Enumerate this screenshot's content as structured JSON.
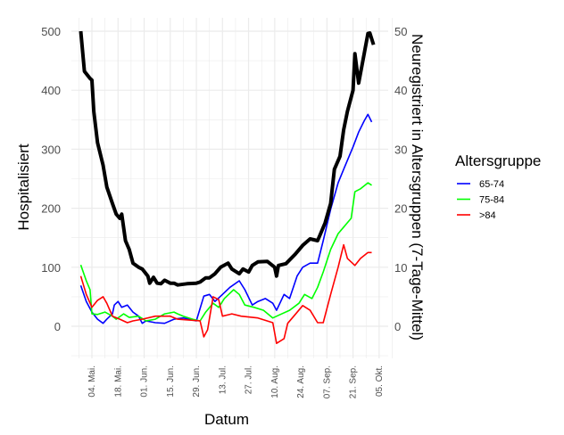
{
  "chart_data": {
    "type": "line",
    "x_unit": "days since 04. Mai",
    "xlabel": "Datum",
    "ylabel_left": "Hospitalisiert",
    "ylabel_right": "Neuregistriert in Altersgruppen (7-Tage-Mittel)",
    "ylim_left": [
      -50,
      525
    ],
    "ylim_right": [
      -5,
      52.5
    ],
    "left_ticks": [
      0,
      100,
      200,
      300,
      400,
      500
    ],
    "right_ticks": [
      0,
      10,
      20,
      30,
      40,
      50
    ],
    "left_tick_labels": [
      "0",
      "100",
      "200",
      "300",
      "400",
      "500"
    ],
    "right_tick_labels": [
      "0",
      "10",
      "20",
      "30",
      "40",
      "50"
    ],
    "x_ticks": [
      0,
      14,
      28,
      42,
      56,
      70,
      84,
      98,
      112,
      126,
      140,
      154
    ],
    "x_tick_labels": [
      "04. Mai.",
      "18. Mai.",
      "01. Jun.",
      "15. Jun.",
      "29. Jun.",
      "13. Jul.",
      "27. Jul.",
      "10. Aug.",
      "24. Aug.",
      "07. Sep.",
      "21. Sep.",
      "05. Okt."
    ],
    "grid": true,
    "legend": {
      "title": "Altersgruppe",
      "placement": "right"
    },
    "series": [
      {
        "name": "Hospitalisiert",
        "axis": "left",
        "color": "#000000",
        "in_legend": false,
        "x": [
          -6,
          -4,
          -1,
          0,
          1,
          3,
          6,
          8,
          11,
          13,
          15,
          16,
          18,
          20,
          22,
          25,
          27,
          30,
          31,
          33,
          35,
          37,
          39,
          42,
          44,
          46,
          51,
          56,
          58,
          61,
          63,
          66,
          69,
          73,
          75,
          79,
          81,
          84,
          86,
          89,
          94,
          98,
          99,
          100,
          104,
          109,
          113,
          117,
          121,
          123,
          125,
          128,
          130,
          133,
          135,
          137,
          140,
          141,
          143,
          146,
          148,
          149,
          151
        ],
        "values": [
          500,
          432,
          420,
          417,
          364,
          311,
          273,
          236,
          208,
          190,
          183,
          190,
          145,
          130,
          107,
          100,
          97,
          85,
          73,
          83,
          73,
          72,
          78,
          73,
          73,
          70,
          72,
          73,
          75,
          82,
          82,
          89,
          100,
          107,
          97,
          89,
          97,
          92,
          103,
          109,
          110,
          100,
          85,
          103,
          106,
          122,
          137,
          148,
          145,
          160,
          175,
          208,
          266,
          288,
          333,
          364,
          400,
          462,
          412,
          462,
          496,
          497,
          477
        ]
      },
      {
        "name": "65-74",
        "axis": "right",
        "color": "#0000ff",
        "in_legend": true,
        "x": [
          -6,
          -3,
          0,
          3,
          6,
          8,
          11,
          12,
          14,
          16,
          19,
          22,
          25,
          27,
          29,
          34,
          39,
          44,
          49,
          56,
          60,
          63,
          66,
          70,
          74,
          79,
          82,
          86,
          89,
          93,
          97,
          99,
          103,
          106,
          110,
          113,
          117,
          121,
          124,
          128,
          132,
          135,
          140,
          143,
          146,
          148,
          150
        ],
        "values": [
          6.9,
          4.2,
          2.4,
          1.2,
          0.5,
          1.2,
          2.1,
          3.6,
          4.2,
          3.2,
          3.6,
          2.4,
          1.7,
          0.5,
          0.9,
          0.6,
          0.5,
          1.2,
          1.4,
          0.9,
          5.1,
          5.4,
          4.2,
          5.4,
          6.6,
          7.7,
          6.2,
          3.6,
          4.2,
          4.7,
          3.9,
          2.7,
          5.4,
          4.7,
          8.5,
          10,
          10.7,
          10.7,
          14.5,
          19.8,
          24.3,
          26.6,
          30.4,
          32.9,
          34.8,
          35.9,
          34.6
        ]
      },
      {
        "name": "75-84",
        "axis": "right",
        "color": "#00ff00",
        "in_legend": true,
        "x": [
          -6,
          -3,
          -1,
          0,
          3,
          7,
          11,
          13,
          17,
          20,
          25,
          29,
          34,
          39,
          44,
          46,
          49,
          54,
          58,
          61,
          65,
          68,
          71,
          76,
          79,
          82,
          87,
          92,
          97,
          101,
          106,
          111,
          114,
          118,
          121,
          124,
          128,
          132,
          135,
          139,
          141,
          144,
          148,
          150
        ],
        "values": [
          10.4,
          7.7,
          6.2,
          2.1,
          2,
          2.4,
          1.7,
          1.2,
          2.1,
          1.5,
          1.7,
          0.9,
          1.2,
          2.1,
          2.4,
          2.1,
          1.7,
          1.2,
          0.9,
          2.4,
          3.9,
          3.2,
          4.7,
          6.2,
          5.4,
          3.6,
          3.2,
          2.7,
          1.4,
          2,
          2.7,
          3.9,
          5.4,
          4.7,
          6.6,
          9.2,
          13,
          15.7,
          16.8,
          18.3,
          22.8,
          23.3,
          24.3,
          23.9
        ]
      },
      {
        "name": ">84",
        "axis": "right",
        "color": "#ff0000",
        "in_legend": true,
        "x": [
          -6,
          -3,
          0,
          3,
          6,
          8,
          11,
          15,
          19,
          22,
          27,
          34,
          42,
          46,
          58,
          60,
          62,
          65,
          68,
          70,
          75,
          80,
          89,
          97,
          99,
          103,
          105,
          109,
          113,
          117,
          121,
          124,
          128,
          132,
          135,
          137,
          141,
          144,
          148,
          150
        ],
        "values": [
          8.5,
          5.4,
          3.2,
          4.4,
          5,
          3.9,
          1.7,
          1.2,
          0.6,
          0.9,
          1.2,
          1.7,
          1.7,
          1.2,
          0.9,
          -1.8,
          -0.6,
          5,
          4.5,
          1.7,
          2.1,
          1.7,
          1.4,
          0.6,
          -2.9,
          -2.1,
          0.5,
          2,
          3.5,
          2.7,
          0.6,
          0.6,
          5.4,
          10,
          13.8,
          11.5,
          10.3,
          11.5,
          12.5,
          12.5
        ]
      }
    ]
  }
}
